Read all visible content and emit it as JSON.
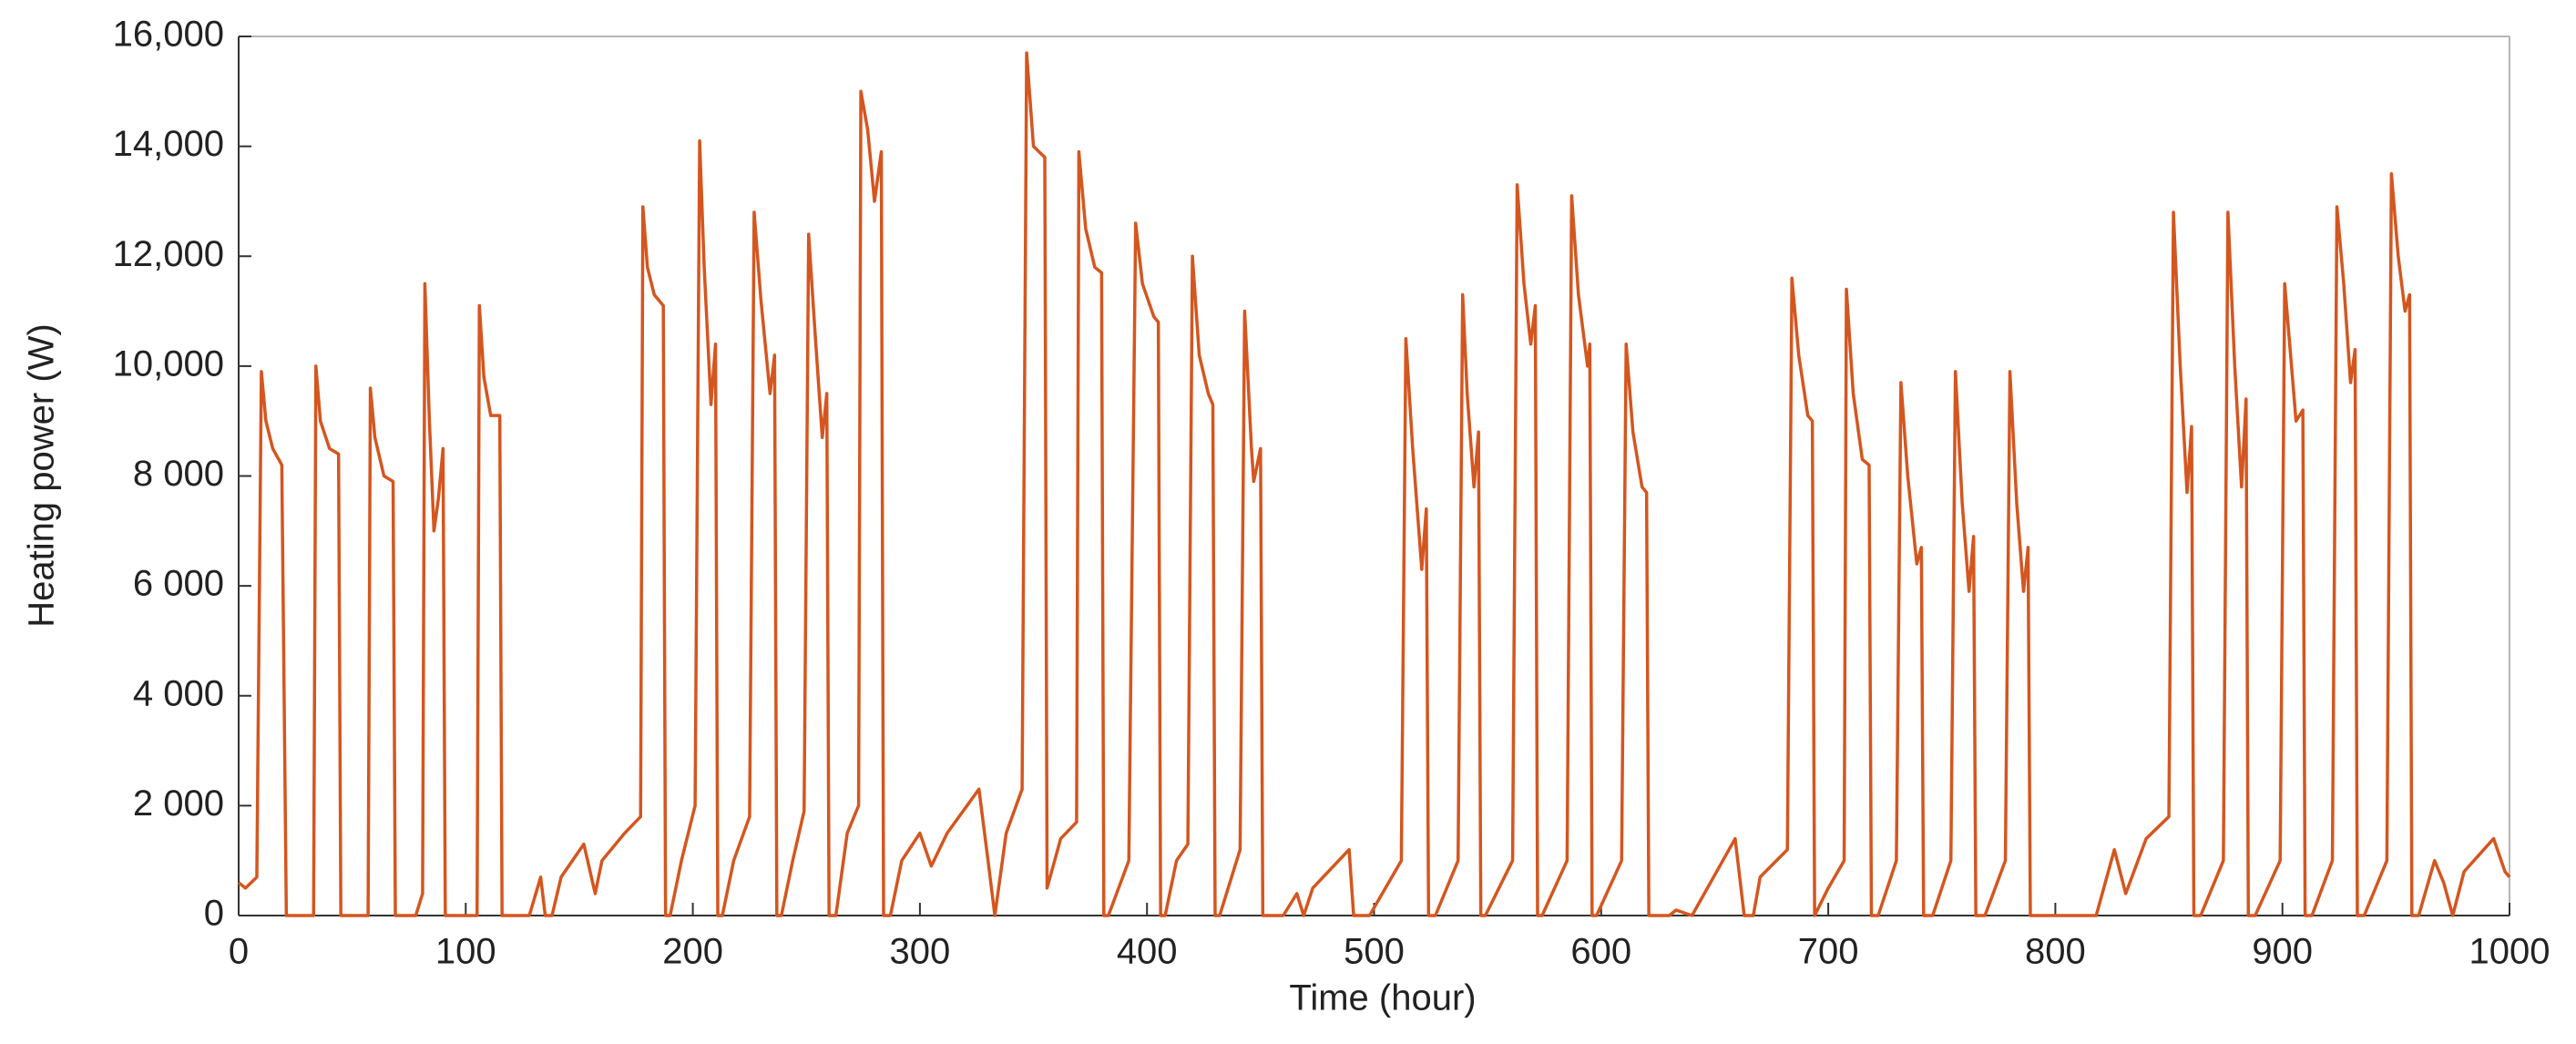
{
  "chart_data": {
    "type": "line",
    "xlabel": "Time (hour)",
    "ylabel": "Heating power (W)",
    "color": "#d4561f",
    "xlim": [
      0,
      1000
    ],
    "ylim": [
      0,
      16000
    ],
    "xticks": [
      0,
      100,
      200,
      300,
      400,
      500,
      600,
      700,
      800,
      900,
      1000
    ],
    "yticks": [
      {
        "value": 0,
        "label": "0"
      },
      {
        "value": 2000,
        "label": "2 000"
      },
      {
        "value": 4000,
        "label": "4 000"
      },
      {
        "value": 6000,
        "label": "6 000"
      },
      {
        "value": 8000,
        "label": "8 000"
      },
      {
        "value": 10000,
        "label": "10,000"
      },
      {
        "value": 12000,
        "label": "12,000"
      },
      {
        "value": 14000,
        "label": "14,000"
      },
      {
        "value": 16000,
        "label": "16,000"
      }
    ],
    "x": [
      0,
      3,
      8,
      10,
      12,
      15,
      19,
      21,
      33,
      34,
      36,
      40,
      44,
      45,
      57,
      58,
      60,
      64,
      68,
      69,
      78,
      81,
      82,
      84,
      86,
      88,
      90,
      91,
      105,
      106,
      108,
      111,
      115,
      116,
      128,
      133,
      135,
      138,
      142,
      152,
      157,
      160,
      170,
      177,
      178,
      180,
      183,
      187,
      188,
      190,
      195,
      201,
      203,
      205,
      208,
      210,
      211,
      213,
      218,
      225,
      227,
      230,
      234,
      236,
      237,
      239,
      244,
      249,
      251,
      254,
      257,
      259,
      260,
      263,
      268,
      273,
      274,
      277,
      280,
      283,
      284,
      287,
      292,
      300,
      305,
      312,
      326,
      330,
      333,
      338,
      345,
      347,
      350,
      355,
      356,
      362,
      369,
      370,
      373,
      377,
      380,
      381,
      383,
      392,
      395,
      398,
      403,
      405,
      406,
      408,
      413,
      418,
      420,
      423,
      427,
      429,
      430,
      432,
      441,
      443,
      446,
      447,
      450,
      451,
      460,
      466,
      469,
      473,
      489,
      491,
      498,
      512,
      514,
      517,
      521,
      523,
      524,
      527,
      537,
      539,
      541,
      544,
      546,
      547,
      549,
      561,
      563,
      566,
      569,
      571,
      572,
      574,
      585,
      587,
      590,
      594,
      595,
      596,
      598,
      609,
      611,
      614,
      618,
      620,
      621,
      630,
      633,
      640,
      659,
      663,
      667,
      670,
      682,
      684,
      687,
      691,
      693,
      694,
      700,
      707,
      708,
      711,
      715,
      718,
      719,
      722,
      730,
      732,
      735,
      739,
      741,
      742,
      746,
      754,
      756,
      759,
      762,
      764,
      765,
      769,
      778,
      780,
      783,
      786,
      788,
      789,
      818,
      826,
      831,
      840,
      850,
      852,
      855,
      858,
      860,
      861,
      864,
      874,
      876,
      879,
      882,
      884,
      885,
      888,
      899,
      901,
      903,
      906,
      909,
      910,
      913,
      922,
      924,
      927,
      930,
      932,
      933,
      936,
      946,
      948,
      951,
      954,
      956,
      957,
      960,
      967,
      971,
      975,
      980,
      993,
      998,
      1000
    ],
    "values": [
      600,
      500,
      700,
      9900,
      9000,
      8500,
      8200,
      0,
      0,
      10000,
      9000,
      8500,
      8400,
      0,
      0,
      9600,
      8700,
      8000,
      7900,
      0,
      0,
      400,
      11500,
      9000,
      7000,
      7600,
      8500,
      0,
      0,
      11100,
      9800,
      9100,
      9100,
      0,
      0,
      700,
      0,
      0,
      700,
      1300,
      400,
      1000,
      1500,
      1800,
      12900,
      11800,
      11300,
      11100,
      0,
      0,
      1000,
      2000,
      14100,
      11800,
      9300,
      10400,
      0,
      0,
      1000,
      1800,
      12800,
      11200,
      9500,
      10200,
      0,
      0,
      1000,
      1900,
      12400,
      10500,
      8700,
      9500,
      0,
      0,
      1500,
      2000,
      15000,
      14300,
      13000,
      13900,
      0,
      0,
      1000,
      1500,
      900,
      1500,
      2300,
      1000,
      0,
      1500,
      2300,
      15700,
      14000,
      13800,
      500,
      1400,
      1700,
      13900,
      12500,
      11800,
      11700,
      0,
      0,
      1000,
      12600,
      11500,
      10900,
      10800,
      0,
      0,
      1000,
      1300,
      12000,
      10200,
      9500,
      9300,
      0,
      0,
      1200,
      11000,
      8500,
      7900,
      8500,
      0,
      0,
      400,
      0,
      500,
      1200,
      0,
      0,
      1000,
      10500,
      8500,
      6300,
      7400,
      0,
      0,
      1000,
      11300,
      9500,
      7800,
      8800,
      0,
      0,
      1000,
      13300,
      11500,
      10400,
      11100,
      0,
      0,
      1000,
      13100,
      11300,
      10000,
      10400,
      0,
      0,
      1000,
      10400,
      8800,
      7800,
      7700,
      0,
      0,
      100,
      0,
      1400,
      0,
      0,
      700,
      1200,
      11600,
      10200,
      9100,
      9000,
      0,
      500,
      1000,
      11400,
      9500,
      8300,
      8200,
      0,
      0,
      1000,
      9700,
      8000,
      6400,
      6700,
      0,
      0,
      1000,
      9900,
      7500,
      5900,
      6900,
      0,
      0,
      1000,
      9900,
      7500,
      5900,
      6700,
      0,
      0,
      1200,
      400,
      1400,
      1800,
      12800,
      10000,
      7700,
      8900,
      0,
      0,
      1000,
      12800,
      10000,
      7800,
      9400,
      0,
      0,
      1000,
      11500,
      10500,
      9000,
      9200,
      0,
      0,
      1000,
      12900,
      11500,
      9700,
      10300,
      0,
      0,
      1000,
      13500,
      12000,
      11000,
      11300,
      0,
      0,
      1000,
      600,
      0,
      800,
      1400,
      800,
      700
    ]
  }
}
